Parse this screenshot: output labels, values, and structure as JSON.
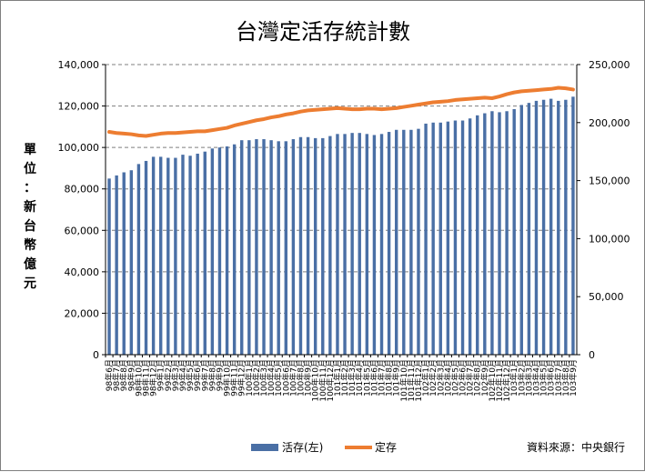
{
  "chart_data": {
    "type": "bar+line",
    "title": "台灣定活存統計數",
    "y_left_label": [
      "單",
      "位",
      "：",
      "新",
      "台",
      "幣",
      "億",
      "元"
    ],
    "ylim_left": [
      0,
      140000
    ],
    "ylim_right": [
      0,
      250000
    ],
    "left_ticks": [
      "0",
      "20,000",
      "40,000",
      "60,000",
      "80,000",
      "100,000",
      "120,000",
      "140,000"
    ],
    "right_ticks": [
      "0",
      "50,000",
      "100,000",
      "150,000",
      "200,000",
      "250,000"
    ],
    "categories": [
      "98年6月",
      "98年7月",
      "98年8月",
      "98年9月",
      "98年10月",
      "98年11月",
      "98年12月",
      "99年1月",
      "99年2月",
      "99年3月",
      "99年4月",
      "99年5月",
      "99年6月",
      "99年7月",
      "99年8月",
      "99年9月",
      "99年10月",
      "99年11月",
      "99年12月",
      "100年1月",
      "100年2月",
      "100年3月",
      "100年4月",
      "100年5月",
      "100年6月",
      "100年7月",
      "100年8月",
      "100年9月",
      "100年10月",
      "100年11月",
      "100年12月",
      "101年1月",
      "101年2月",
      "101年3月",
      "101年4月",
      "101年5月",
      "101年6月",
      "101年7月",
      "101年8月",
      "101年9月",
      "101年10月",
      "101年11月",
      "101年12月",
      "102年1月",
      "102年2月",
      "102年3月",
      "102年4月",
      "102年5月",
      "102年6月",
      "102年7月",
      "102年8月",
      "102年9月",
      "102年10月",
      "102年11月",
      "102年12月",
      "103年1月",
      "103年2月",
      "103年3月",
      "103年4月",
      "103年5月",
      "103年6月",
      "103年7月",
      "103年8月",
      "103年9月"
    ],
    "series": [
      {
        "name": "活存(左)",
        "type": "bar",
        "axis": "left",
        "color": "#4a6fa5",
        "values": [
          85000,
          86500,
          88000,
          89000,
          92000,
          93500,
          95500,
          95500,
          95000,
          95000,
          96500,
          96000,
          97000,
          98000,
          99500,
          100000,
          100500,
          101500,
          103500,
          103500,
          104000,
          104000,
          103500,
          103000,
          103000,
          104000,
          105000,
          105000,
          104500,
          104500,
          105500,
          106500,
          106500,
          107000,
          107000,
          106500,
          106000,
          106500,
          107500,
          108500,
          108500,
          108500,
          109000,
          111500,
          112000,
          112000,
          112500,
          113000,
          113000,
          114000,
          115500,
          116500,
          117500,
          117000,
          117500,
          118500,
          120500,
          121500,
          122500,
          123000,
          123500,
          122500,
          123000,
          124500
        ]
      },
      {
        "name": "定存",
        "type": "line",
        "axis": "right",
        "color": "#ed7d31",
        "values": [
          192000,
          191000,
          190500,
          190000,
          189000,
          188500,
          189500,
          190500,
          191000,
          191000,
          191500,
          192000,
          192500,
          192500,
          193500,
          194500,
          195500,
          197500,
          199000,
          200500,
          202000,
          203000,
          204500,
          205500,
          207000,
          208000,
          209500,
          210500,
          211000,
          211500,
          212000,
          212500,
          212000,
          211500,
          211500,
          212000,
          212000,
          211500,
          212000,
          212500,
          213500,
          214500,
          215500,
          216500,
          217500,
          218000,
          218500,
          219500,
          220000,
          220500,
          221000,
          221500,
          221000,
          222500,
          224500,
          226000,
          227000,
          227500,
          228000,
          228500,
          229000,
          230000,
          229500,
          228500
        ]
      }
    ],
    "legend_position": "bottom",
    "source": "資料來源：中央銀行"
  }
}
